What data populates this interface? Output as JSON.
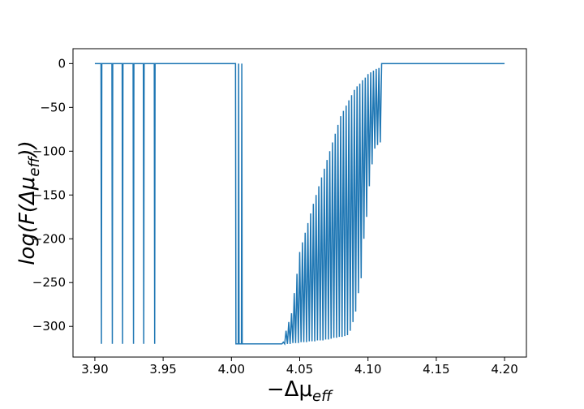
{
  "chart_data": {
    "type": "line",
    "xlabel": {
      "main": "−Δμ",
      "sub": "eff"
    },
    "ylabel": {
      "before": "log(F(Δμ",
      "sub": "eff",
      "after": "))"
    },
    "xlim": [
      3.884,
      4.216
    ],
    "ylim": [
      -335,
      17
    ],
    "xticks": [
      {
        "value": 3.9,
        "label": "3.90"
      },
      {
        "value": 3.95,
        "label": "3.95"
      },
      {
        "value": 4.0,
        "label": "4.00"
      },
      {
        "value": 4.05,
        "label": "4.05"
      },
      {
        "value": 4.1,
        "label": "4.10"
      },
      {
        "value": 4.15,
        "label": "4.15"
      },
      {
        "value": 4.2,
        "label": "4.20"
      }
    ],
    "yticks": [
      {
        "value": 0,
        "label": "0"
      },
      {
        "value": -50,
        "label": "−50"
      },
      {
        "value": -100,
        "label": "−100"
      },
      {
        "value": -150,
        "label": "−150"
      },
      {
        "value": -200,
        "label": "−200"
      },
      {
        "value": -250,
        "label": "−250"
      },
      {
        "value": -300,
        "label": "−300"
      }
    ],
    "grid": false,
    "series": [
      {
        "color": "#1f77b4",
        "x": [
          3.9,
          3.9045,
          3.9048,
          3.9051,
          3.9125,
          3.9128,
          3.9131,
          3.92,
          3.9203,
          3.9206,
          3.928,
          3.9283,
          3.9286,
          3.9355,
          3.9358,
          3.9361,
          3.9435,
          3.9438,
          3.9441,
          4.003,
          4.0033,
          4.005,
          4.0053,
          4.0056,
          4.0073,
          4.0076,
          4.0079,
          4.037,
          4.038,
          4.039,
          4.04,
          4.041,
          4.042,
          4.043,
          4.044,
          4.045,
          4.046,
          4.047,
          4.048,
          4.049,
          4.05,
          4.051,
          4.052,
          4.053,
          4.054,
          4.055,
          4.056,
          4.057,
          4.058,
          4.059,
          4.06,
          4.061,
          4.062,
          4.063,
          4.064,
          4.065,
          4.066,
          4.067,
          4.068,
          4.069,
          4.07,
          4.071,
          4.072,
          4.073,
          4.074,
          4.075,
          4.076,
          4.077,
          4.078,
          4.079,
          4.08,
          4.081,
          4.082,
          4.083,
          4.084,
          4.085,
          4.086,
          4.087,
          4.088,
          4.089,
          4.09,
          4.091,
          4.092,
          4.093,
          4.094,
          4.095,
          4.096,
          4.097,
          4.098,
          4.099,
          4.1,
          4.101,
          4.102,
          4.103,
          4.104,
          4.105,
          4.106,
          4.107,
          4.108,
          4.109,
          4.11,
          4.2
        ],
        "values": [
          0,
          0,
          -320,
          0,
          0,
          -320,
          0,
          0,
          -320,
          0,
          0,
          -320,
          0,
          0,
          -320,
          0,
          0,
          -320,
          0,
          0,
          -320,
          -320,
          0,
          -320,
          -320,
          0,
          -320,
          -320,
          -318,
          -320,
          -305,
          -320,
          -295,
          -320,
          -285,
          -319,
          -262,
          -319,
          -240,
          -319,
          -215,
          -318,
          -204,
          -318,
          -193,
          -318,
          -182,
          -317,
          -171,
          -317,
          -160,
          -317,
          -150,
          -316,
          -140,
          -316,
          -130,
          -316,
          -120,
          -315,
          -110,
          -315,
          -100,
          -314,
          -90,
          -313,
          -80,
          -313,
          -70,
          -312,
          -60,
          -312,
          -54,
          -311,
          -48,
          -310,
          -42,
          -305,
          -36,
          -295,
          -30,
          -283,
          -26,
          -262,
          -23,
          -245,
          -19,
          -200,
          -16,
          -175,
          -12,
          -140,
          -10,
          -115,
          -8,
          -97,
          -6,
          -93,
          -5,
          -90,
          0,
          0
        ]
      }
    ]
  }
}
